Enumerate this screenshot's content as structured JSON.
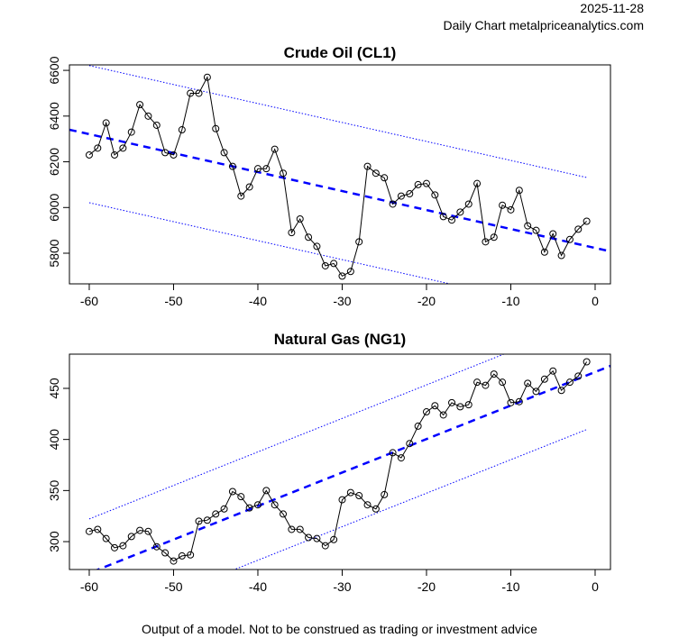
{
  "header": {
    "date": "2025-11-28",
    "source": "Daily Chart metalpriceanalytics.com"
  },
  "footer": "Output of a model. Not to be construed as trading or investment advice",
  "colors": {
    "series": "#000000",
    "trend": "#0000ff",
    "band": "#0000ff"
  },
  "chart_data": [
    {
      "type": "line",
      "title": "Crude Oil  (CL1)",
      "xlabel": "",
      "ylabel": "",
      "xlim": [
        -62.35,
        1.82
      ],
      "ylim": [
        5666,
        6624
      ],
      "xticks": [
        -60,
        -50,
        -40,
        -30,
        -20,
        -10,
        0
      ],
      "yticks": [
        5800,
        6000,
        6200,
        6400,
        6600
      ],
      "x": [
        -60,
        -59,
        -58,
        -57,
        -56,
        -55,
        -54,
        -53,
        -52,
        -51,
        -50,
        -49,
        -48,
        -47,
        -46,
        -45,
        -44,
        -43,
        -42,
        -41,
        -40,
        -39,
        -38,
        -37,
        -36,
        -35,
        -34,
        -33,
        -32,
        -31,
        -30,
        -29,
        -28,
        -27,
        -26,
        -25,
        -24,
        -23,
        -22,
        -21,
        -20,
        -19,
        -18,
        -17,
        -16,
        -15,
        -14,
        -13,
        -12,
        -11,
        -10,
        -9,
        -8,
        -7,
        -6,
        -5,
        -4,
        -3,
        -2,
        -1
      ],
      "values": [
        6230,
        6260,
        6370,
        6230,
        6260,
        6330,
        6450,
        6400,
        6360,
        6240,
        6230,
        6340,
        6500,
        6500,
        6570,
        6345,
        6240,
        6180,
        6050,
        6090,
        6170,
        6170,
        6255,
        6150,
        5890,
        5950,
        5870,
        5830,
        5745,
        5755,
        5700,
        5720,
        5850,
        6180,
        6150,
        6130,
        6015,
        6050,
        6060,
        6100,
        6105,
        6055,
        5960,
        5945,
        5980,
        6015,
        6105,
        5850,
        5870,
        6010,
        5990,
        6075,
        5920,
        5900,
        5805,
        5885,
        5790,
        5860,
        5905,
        5940
      ],
      "trend": {
        "intercept_at_0": 5823,
        "slope_per_day": -8.3
      },
      "band": {
        "offset": 300,
        "x_from": -60,
        "x_to": -1
      }
    },
    {
      "type": "line",
      "title": "Natural Gas (NG1)",
      "xlabel": "",
      "ylabel": "",
      "xlim": [
        -62.35,
        1.82
      ],
      "ylim": [
        272.7,
        483.5
      ],
      "xticks": [
        -60,
        -50,
        -40,
        -30,
        -20,
        -10,
        0
      ],
      "yticks": [
        300,
        350,
        400,
        450
      ],
      "x": [
        -60,
        -59,
        -58,
        -57,
        -56,
        -55,
        -54,
        -53,
        -52,
        -51,
        -50,
        -49,
        -48,
        -47,
        -46,
        -45,
        -44,
        -43,
        -42,
        -41,
        -40,
        -39,
        -38,
        -37,
        -36,
        -35,
        -34,
        -33,
        -32,
        -31,
        -30,
        -29,
        -28,
        -27,
        -26,
        -25,
        -24,
        -23,
        -22,
        -21,
        -20,
        -19,
        -18,
        -17,
        -16,
        -15,
        -14,
        -13,
        -12,
        -11,
        -10,
        -9,
        -8,
        -7,
        -6,
        -5,
        -4,
        -3,
        -2,
        -1
      ],
      "values": [
        310,
        312,
        303,
        294,
        296,
        305,
        311,
        310,
        295,
        289,
        281,
        286,
        287,
        320,
        321,
        327,
        332,
        349,
        344,
        333,
        336,
        350,
        336,
        327,
        312,
        312,
        304,
        303,
        296,
        302,
        341,
        348,
        345,
        336,
        332,
        346,
        387,
        382,
        396,
        413,
        427,
        433,
        424,
        436,
        432,
        434,
        456,
        453,
        464,
        456,
        436,
        437,
        455,
        447,
        459,
        467,
        448,
        456,
        462,
        476
      ],
      "trend": {
        "intercept_at_0": 466,
        "slope_per_day": 3.28
      },
      "band": {
        "offset": 53,
        "x_from": -60,
        "x_to": -1
      }
    }
  ]
}
